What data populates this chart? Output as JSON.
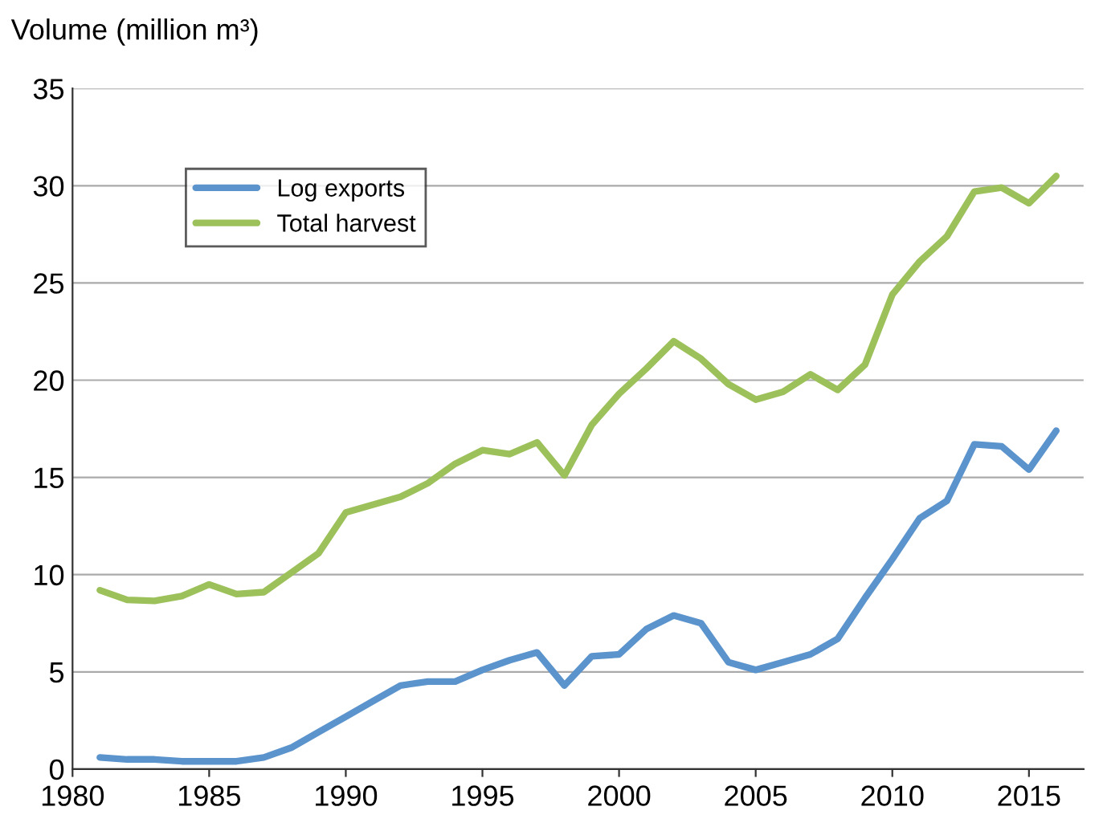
{
  "chart_data": {
    "type": "line",
    "ylabel": "Volume (million m³)",
    "x": [
      1981,
      1982,
      1983,
      1984,
      1985,
      1986,
      1987,
      1988,
      1989,
      1990,
      1991,
      1992,
      1993,
      1994,
      1995,
      1996,
      1997,
      1998,
      1999,
      2000,
      2001,
      2002,
      2003,
      2004,
      2005,
      2006,
      2007,
      2008,
      2009,
      2010,
      2011,
      2012,
      2013,
      2014,
      2015,
      2016
    ],
    "series": [
      {
        "name": "Log exports",
        "color": "#5b93cc",
        "values": [
          0.6,
          0.5,
          0.5,
          0.4,
          0.4,
          0.4,
          0.6,
          1.1,
          1.9,
          2.7,
          3.5,
          4.3,
          4.5,
          4.5,
          5.1,
          5.6,
          6.0,
          4.3,
          5.8,
          5.9,
          7.2,
          7.9,
          7.5,
          5.5,
          5.1,
          5.5,
          5.9,
          6.7,
          8.8,
          10.8,
          12.9,
          13.8,
          16.7,
          16.6,
          15.4,
          17.4
        ]
      },
      {
        "name": "Total harvest",
        "color": "#9dc15a",
        "values": [
          9.2,
          8.7,
          8.65,
          8.9,
          9.5,
          9.0,
          9.1,
          10.1,
          11.1,
          13.2,
          13.6,
          14.0,
          14.7,
          15.7,
          16.4,
          16.2,
          16.8,
          15.1,
          17.7,
          19.3,
          20.6,
          22.0,
          21.1,
          19.8,
          19.0,
          19.4,
          20.3,
          19.5,
          20.8,
          24.4,
          26.1,
          27.4,
          29.7,
          29.9,
          29.1,
          30.5
        ]
      }
    ],
    "xlim": [
      1980,
      2017
    ],
    "xticks": [
      1980,
      1985,
      1990,
      1995,
      2000,
      2005,
      2010,
      2015
    ],
    "ylim": [
      0,
      35
    ],
    "yticks": [
      0,
      5,
      10,
      15,
      20,
      25,
      30,
      35
    ],
    "grid": "y",
    "legend": "top left",
    "marker": "none",
    "line_style": "solid"
  }
}
